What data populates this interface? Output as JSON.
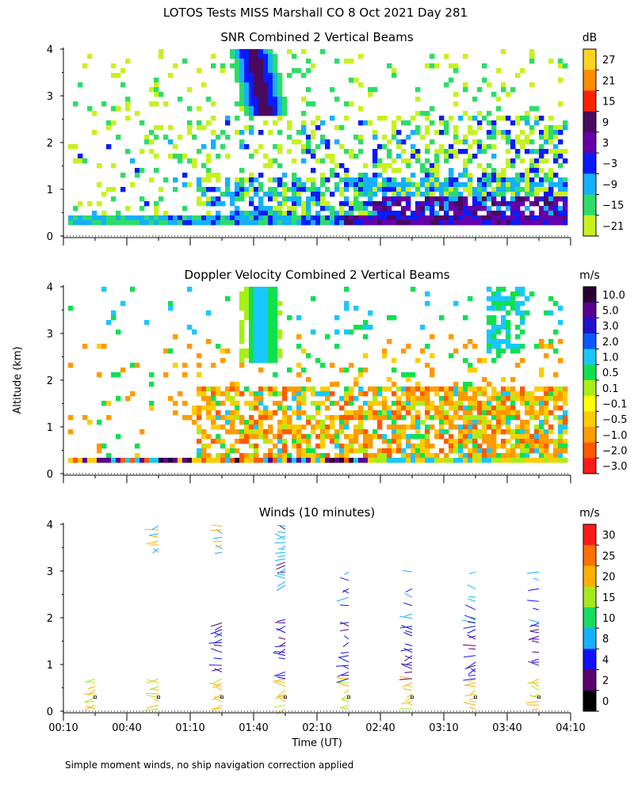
{
  "title": "LOTOS Tests MISS Marshall CO    8 Oct 2021 Day 281",
  "shared_ylabel": "Altitude (km)",
  "footnote": "Simple moment winds, no ship navigation correction applied",
  "chart_data": [
    {
      "id": "snr",
      "type": "heatmap",
      "title": "SNR Combined 2 Vertical Beams",
      "ylabel": "Altitude (km)",
      "ylim": [
        0,
        4
      ],
      "yticks": [
        "0",
        "1",
        "2",
        "3",
        "4"
      ],
      "xlim_minutes": [
        10,
        250
      ],
      "colorbar": {
        "unit": "dB",
        "labels": [
          "27",
          "21",
          "15",
          "9",
          "3",
          "−3",
          "−9",
          "−15",
          "−21"
        ],
        "colors": [
          "#ffd21f",
          "#ff8c00",
          "#ff2200",
          "#4a0a5e",
          "#6600a8",
          "#0a1aff",
          "#15b0ff",
          "#2edc68",
          "#c6f21e"
        ]
      }
    },
    {
      "id": "doppler",
      "type": "heatmap",
      "title": "Doppler Velocity Combined 2 Vertical Beams",
      "ylabel": "Altitude (km)",
      "ylim": [
        0,
        4
      ],
      "yticks": [
        "0",
        "1",
        "2",
        "3",
        "4"
      ],
      "xlim_minutes": [
        10,
        250
      ],
      "colorbar": {
        "unit": "m/s",
        "labels": [
          "10.0",
          "5.0",
          "3.0",
          "2.0",
          "1.0",
          "0.5",
          "0.1",
          "−0.1",
          "−0.5",
          "−1.0",
          "−2.0",
          "−3.0"
        ],
        "colors": [
          "#2a0030",
          "#5a0090",
          "#2010d0",
          "#0a58ff",
          "#18c8ff",
          "#10e050",
          "#a8ee18",
          "#ffff00",
          "#ffcc00",
          "#ff9a00",
          "#ff5a00",
          "#ff1a1a"
        ]
      }
    },
    {
      "id": "winds",
      "type": "scatter",
      "title": "Winds (10 minutes)",
      "xlabel": "Time (UT)",
      "ylabel": "Altitude (km)",
      "ylim": [
        0,
        4
      ],
      "yticks": [
        "0",
        "1",
        "2",
        "3",
        "4"
      ],
      "xlim_minutes": [
        10,
        250
      ],
      "xticks": [
        "00:10",
        "00:40",
        "01:10",
        "01:40",
        "02:10",
        "02:40",
        "03:10",
        "03:40",
        "04:10"
      ],
      "colorbar": {
        "unit": "m/s",
        "labels": [
          "30",
          "25",
          "20",
          "15",
          "10",
          "8",
          "4",
          "2",
          "0"
        ],
        "colors": [
          "#ff1a1a",
          "#ff7000",
          "#ffb000",
          "#a6e81e",
          "#18dc60",
          "#15b0ff",
          "#1010ff",
          "#5a0070",
          "#000000"
        ]
      },
      "profile_times_minutes": [
        25,
        55,
        85,
        115,
        145,
        175,
        205,
        235
      ]
    }
  ]
}
